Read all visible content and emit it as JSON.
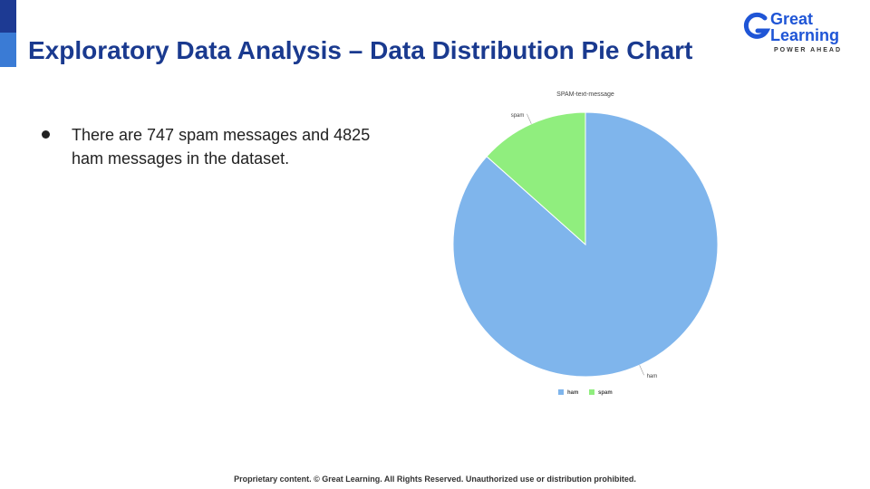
{
  "slide": {
    "title": "Exploratory Data Analysis – Data Distribution Pie Chart",
    "bullet": "There are 747 spam messages and 4825 ham messages in the dataset.",
    "footer": "Proprietary content. © Great Learning. All Rights Reserved. Unauthorized use or distribution prohibited."
  },
  "logo": {
    "line1": "Great",
    "line2": "Learning",
    "tagline": "POWER AHEAD",
    "color": "#1f55d6"
  },
  "colors": {
    "accent_dark": "#1d3a93",
    "accent_light": "#3a7bd5",
    "title": "#1a3a8f"
  },
  "chart_data": {
    "type": "pie",
    "title": "SPAM-text-message",
    "slices": [
      {
        "label": "ham",
        "value": 4825,
        "color": "#7fb5ec"
      },
      {
        "label": "spam",
        "value": 747,
        "color": "#90ee7e"
      }
    ],
    "legend": [
      "ham",
      "spam"
    ],
    "legend_position": "bottom"
  }
}
